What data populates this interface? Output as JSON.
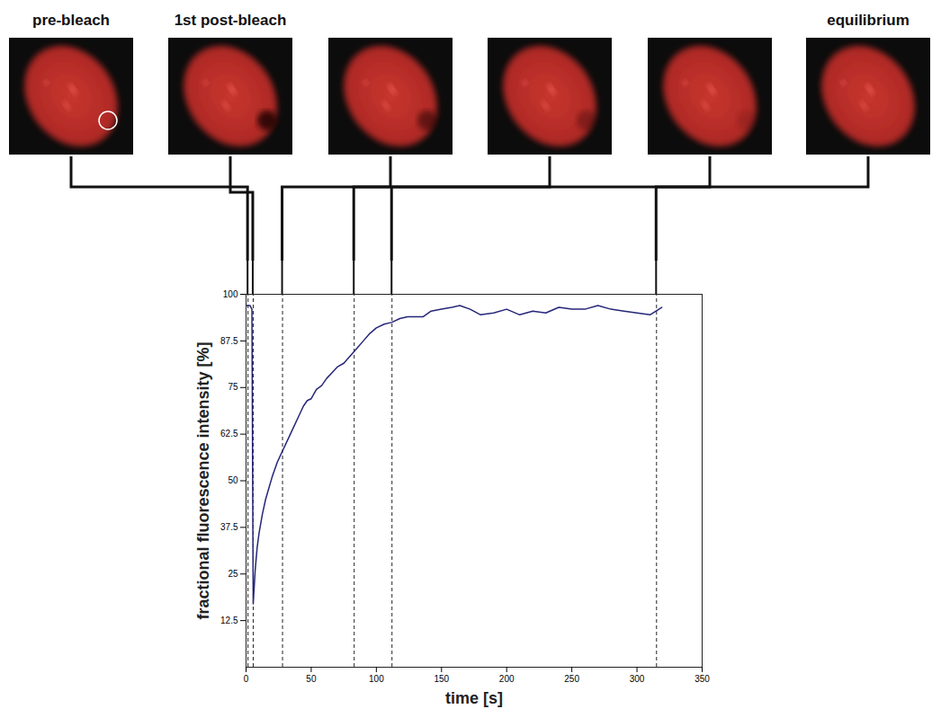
{
  "chart_data": {
    "type": "line",
    "xlabel": "time [s]",
    "ylabel": "fractional fluorescence intensity [%]",
    "x": [
      0,
      1.5,
      3,
      4.5,
      5.5,
      7,
      8.5,
      10,
      12.5,
      15,
      17.5,
      20,
      24,
      28,
      32,
      36,
      40,
      44,
      47,
      50,
      54,
      58,
      62,
      66,
      70,
      75,
      80,
      85,
      90,
      95,
      100,
      106,
      112,
      118,
      124,
      130,
      136,
      142,
      150,
      158,
      164,
      172,
      180,
      190,
      200,
      210,
      220,
      230,
      240,
      250,
      260,
      270,
      280,
      290,
      300,
      310,
      319
    ],
    "values": [
      97,
      97,
      97,
      96,
      17,
      26,
      32,
      36,
      41,
      45,
      48,
      51,
      55,
      58,
      61,
      64,
      67,
      70,
      71.5,
      72,
      74.5,
      75.5,
      77.5,
      79,
      80.5,
      81.5,
      83.5,
      85.5,
      87.5,
      89.5,
      91,
      92,
      92.5,
      93.5,
      94,
      94,
      94,
      95.5,
      96,
      96.5,
      97,
      96,
      94.5,
      95,
      96,
      94.5,
      95.5,
      95,
      96.5,
      96,
      96,
      97,
      96,
      95.5,
      95,
      94.5,
      96.5
    ],
    "color": "#262678",
    "xlim": [
      0,
      350
    ],
    "ylim": [
      0,
      100
    ],
    "xticks": [
      0,
      50,
      100,
      150,
      200,
      250,
      300,
      350
    ],
    "yticks": [
      12.5,
      25,
      37.5,
      50,
      62.5,
      75,
      87.5,
      100
    ],
    "grid": false,
    "snapshots": [
      {
        "time": 1.5,
        "label": "pre-bleach"
      },
      {
        "time": 5.5,
        "label": "1st post-bleach"
      },
      {
        "time": 28
      },
      {
        "time": 83
      },
      {
        "time": 112
      },
      {
        "time": 315,
        "label": "equilibrium"
      }
    ]
  }
}
